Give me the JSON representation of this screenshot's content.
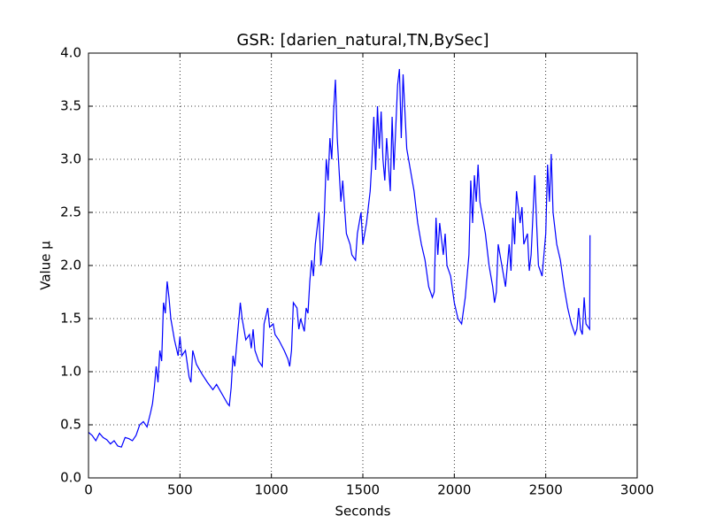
{
  "chart_data": {
    "type": "line",
    "title": "GSR: [darien_natural,TN,BySec]",
    "x_label": "Seconds",
    "y_label": "Value µ",
    "xlim": [
      0,
      3000
    ],
    "ylim": [
      0,
      4
    ],
    "xticks": [
      0,
      500,
      1000,
      1500,
      2000,
      2500,
      3000
    ],
    "yticks": [
      {
        "value": 0,
        "label": "0.0"
      },
      0.5,
      {
        "value": 1,
        "label": "1.0"
      },
      1.5,
      {
        "value": 2,
        "label": "2.0"
      },
      2.5,
      {
        "value": 3,
        "label": "3.0"
      },
      3.5,
      {
        "value": 4,
        "label": "4.0"
      }
    ],
    "grid": true,
    "x": [
      0,
      20,
      40,
      60,
      80,
      100,
      120,
      140,
      160,
      180,
      200,
      220,
      240,
      260,
      280,
      300,
      320,
      340,
      350,
      360,
      370,
      380,
      390,
      400,
      410,
      420,
      430,
      440,
      450,
      470,
      490,
      500,
      510,
      530,
      550,
      560,
      570,
      590,
      620,
      650,
      680,
      700,
      720,
      760,
      770,
      780,
      790,
      800,
      820,
      830,
      840,
      860,
      880,
      890,
      900,
      910,
      930,
      950,
      960,
      980,
      990,
      1010,
      1020,
      1040,
      1070,
      1090,
      1100,
      1110,
      1120,
      1140,
      1150,
      1160,
      1180,
      1190,
      1200,
      1210,
      1220,
      1230,
      1240,
      1260,
      1270,
      1280,
      1290,
      1300,
      1310,
      1320,
      1330,
      1340,
      1350,
      1360,
      1370,
      1380,
      1390,
      1400,
      1410,
      1430,
      1440,
      1460,
      1470,
      1490,
      1500,
      1520,
      1540,
      1550,
      1560,
      1570,
      1580,
      1590,
      1600,
      1610,
      1620,
      1630,
      1650,
      1660,
      1670,
      1690,
      1700,
      1710,
      1720,
      1740,
      1760,
      1780,
      1800,
      1820,
      1840,
      1860,
      1880,
      1890,
      1900,
      1910,
      1920,
      1940,
      1950,
      1960,
      1980,
      2000,
      2020,
      2040,
      2060,
      2080,
      2090,
      2100,
      2110,
      2120,
      2130,
      2140,
      2150,
      2170,
      2190,
      2210,
      2220,
      2230,
      2240,
      2260,
      2280,
      2300,
      2310,
      2320,
      2330,
      2340,
      2360,
      2370,
      2380,
      2400,
      2410,
      2420,
      2440,
      2450,
      2460,
      2480,
      2500,
      2510,
      2520,
      2530,
      2540,
      2560,
      2580,
      2600,
      2620,
      2640,
      2660,
      2670,
      2680,
      2690,
      2700,
      2710,
      2720,
      2740,
      2742,
      2745
    ],
    "series": [
      {
        "color": "#0000ff",
        "values": [
          0.43,
          0.4,
          0.35,
          0.42,
          0.38,
          0.36,
          0.32,
          0.35,
          0.3,
          0.29,
          0.38,
          0.37,
          0.35,
          0.4,
          0.5,
          0.53,
          0.48,
          0.62,
          0.7,
          0.85,
          1.05,
          0.9,
          1.2,
          1.1,
          1.65,
          1.55,
          1.85,
          1.7,
          1.5,
          1.3,
          1.15,
          1.33,
          1.15,
          1.2,
          0.95,
          0.9,
          1.2,
          1.07,
          0.98,
          0.9,
          0.83,
          0.88,
          0.82,
          0.7,
          0.68,
          0.85,
          1.15,
          1.05,
          1.45,
          1.65,
          1.5,
          1.3,
          1.35,
          1.22,
          1.4,
          1.2,
          1.1,
          1.05,
          1.45,
          1.6,
          1.42,
          1.45,
          1.35,
          1.3,
          1.2,
          1.12,
          1.05,
          1.2,
          1.65,
          1.6,
          1.4,
          1.5,
          1.38,
          1.6,
          1.55,
          1.85,
          2.05,
          1.9,
          2.2,
          2.5,
          2.0,
          2.15,
          2.5,
          3.0,
          2.8,
          3.2,
          3.0,
          3.45,
          3.75,
          3.2,
          2.9,
          2.6,
          2.8,
          2.55,
          2.3,
          2.2,
          2.1,
          2.05,
          2.3,
          2.5,
          2.2,
          2.4,
          2.7,
          3.0,
          3.4,
          2.9,
          3.5,
          3.1,
          3.45,
          3.0,
          2.8,
          3.2,
          2.7,
          3.4,
          2.9,
          3.7,
          3.85,
          3.2,
          3.8,
          3.1,
          2.9,
          2.7,
          2.4,
          2.2,
          2.05,
          1.8,
          1.7,
          1.75,
          2.45,
          2.1,
          2.4,
          2.1,
          2.3,
          2.0,
          1.9,
          1.65,
          1.5,
          1.45,
          1.7,
          2.1,
          2.8,
          2.4,
          2.85,
          2.6,
          2.95,
          2.6,
          2.5,
          2.3,
          2.0,
          1.8,
          1.65,
          1.75,
          2.2,
          2.0,
          1.8,
          2.2,
          1.95,
          2.45,
          2.2,
          2.7,
          2.4,
          2.55,
          2.2,
          2.3,
          1.95,
          2.1,
          2.85,
          2.4,
          2.0,
          1.9,
          2.3,
          2.95,
          2.6,
          3.05,
          2.5,
          2.2,
          2.05,
          1.8,
          1.6,
          1.45,
          1.35,
          1.4,
          1.6,
          1.4,
          1.35,
          1.7,
          1.45,
          1.4,
          2.28,
          2.28
        ]
      }
    ]
  }
}
